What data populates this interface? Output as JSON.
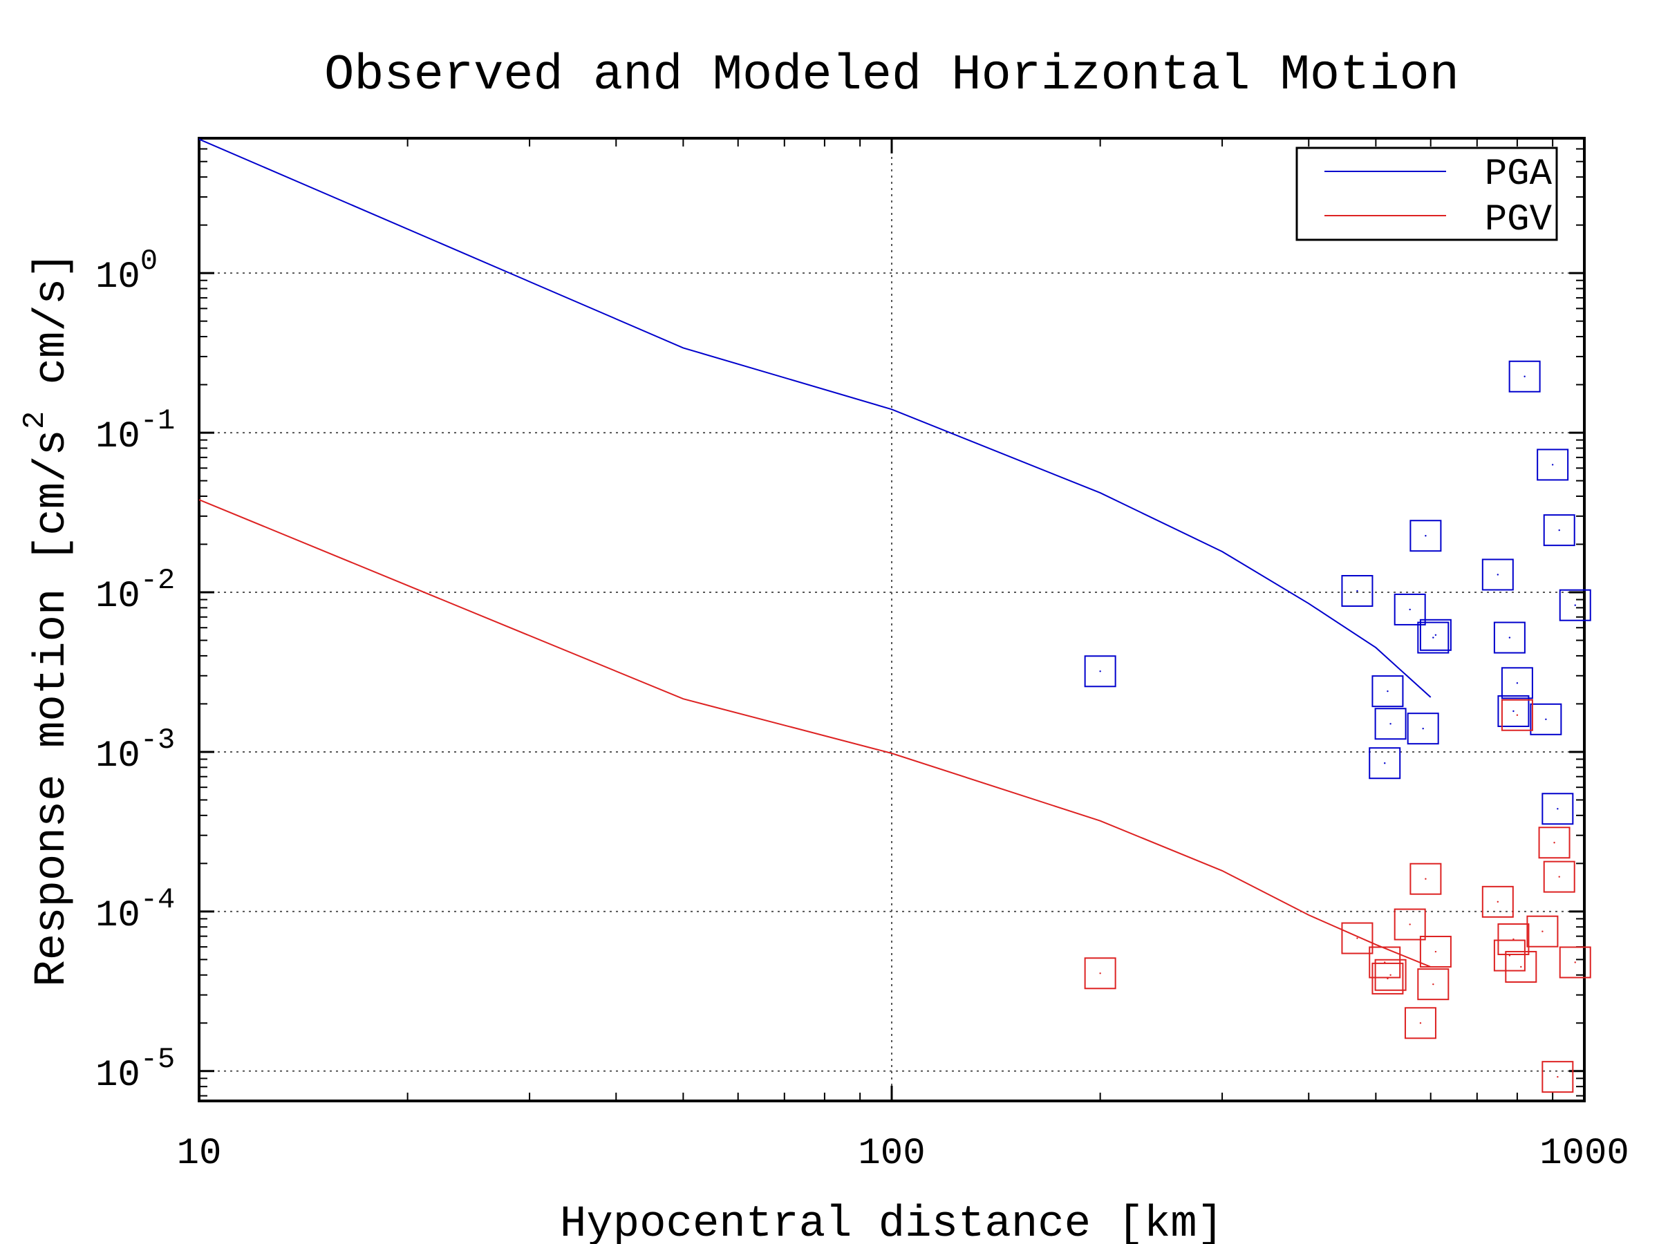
{
  "chart_data": {
    "type": "scatter",
    "title": "Observed and Modeled Horizontal Motion",
    "xlabel": "Hypocentral distance [km]",
    "ylabel_main": "Response motion [cm/s",
    "ylabel_sup": "2",
    "ylabel_tail": " cm/s]",
    "x_scale": "log",
    "y_scale": "log",
    "xlim": [
      10,
      1000
    ],
    "ylim": [
      6.5e-06,
      7
    ],
    "x_ticks": [
      {
        "value": 10,
        "label": "10"
      },
      {
        "value": 100,
        "label": "100"
      },
      {
        "value": 1000,
        "label": "1000"
      }
    ],
    "y_ticks": [
      {
        "value": 1,
        "base": "10",
        "exp": "0"
      },
      {
        "value": 0.1,
        "base": "10",
        "exp": "-1"
      },
      {
        "value": 0.01,
        "base": "10",
        "exp": "-2"
      },
      {
        "value": 0.001,
        "base": "10",
        "exp": "-3"
      },
      {
        "value": 0.0001,
        "base": "10",
        "exp": "-4"
      },
      {
        "value": 1e-05,
        "base": "10",
        "exp": "-5"
      }
    ],
    "grid": "major, dotted",
    "legend_position": "top-right",
    "series": [
      {
        "name": "PGA",
        "color": "#0000cc",
        "model_line": [
          [
            10,
            6.9
          ],
          [
            50,
            0.34
          ],
          [
            100,
            0.14
          ],
          [
            200,
            0.042
          ],
          [
            300,
            0.018
          ],
          [
            400,
            0.0085
          ],
          [
            500,
            0.0045
          ],
          [
            600,
            0.0022
          ]
        ],
        "observed": [
          [
            200,
            0.0032
          ],
          [
            470,
            0.0102
          ],
          [
            520,
            0.0024
          ],
          [
            515,
            0.00085
          ],
          [
            525,
            0.0015
          ],
          [
            560,
            0.0078
          ],
          [
            590,
            0.0226
          ],
          [
            585,
            0.0014
          ],
          [
            610,
            0.0054
          ],
          [
            605,
            0.0052
          ],
          [
            750,
            0.0129
          ],
          [
            780,
            0.0052
          ],
          [
            790,
            0.0018
          ],
          [
            800,
            0.0027
          ],
          [
            820,
            0.225
          ],
          [
            880,
            0.0016
          ],
          [
            900,
            0.063
          ],
          [
            915,
            0.00044
          ],
          [
            920,
            0.0245
          ],
          [
            970,
            0.0083
          ]
        ]
      },
      {
        "name": "PGV",
        "color": "#dd2222",
        "model_line": [
          [
            10,
            0.038
          ],
          [
            50,
            0.00215
          ],
          [
            100,
            0.00098
          ],
          [
            200,
            0.00037
          ],
          [
            300,
            0.00018
          ],
          [
            400,
            9.5e-05
          ],
          [
            500,
            6.2e-05
          ],
          [
            600,
            4.5e-05
          ]
        ],
        "observed": [
          [
            200,
            4.1e-05
          ],
          [
            470,
            6.8e-05
          ],
          [
            515,
            4.8e-05
          ],
          [
            520,
            3.8e-05
          ],
          [
            525,
            4e-05
          ],
          [
            560,
            8.3e-05
          ],
          [
            580,
            2e-05
          ],
          [
            590,
            0.00016
          ],
          [
            610,
            5.6e-05
          ],
          [
            605,
            3.5e-05
          ],
          [
            750,
            0.000115
          ],
          [
            780,
            5.3e-05
          ],
          [
            790,
            6.7e-05
          ],
          [
            800,
            0.0017
          ],
          [
            810,
            4.5e-05
          ],
          [
            870,
            7.5e-05
          ],
          [
            905,
            0.00027
          ],
          [
            915,
            9.2e-06
          ],
          [
            920,
            0.000165
          ],
          [
            970,
            4.8e-05
          ]
        ]
      }
    ]
  }
}
